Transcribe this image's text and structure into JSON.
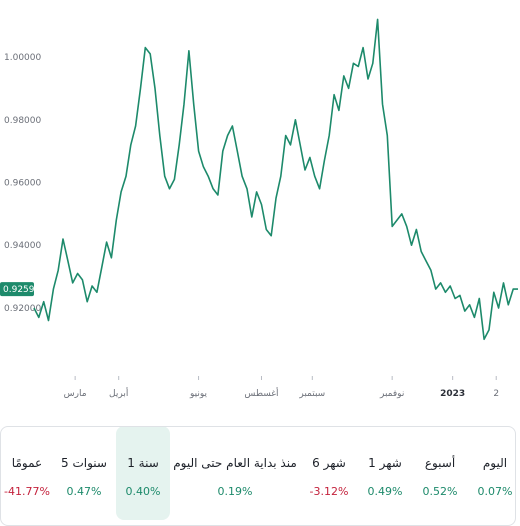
{
  "chart_data": {
    "type": "line",
    "ylim": [
      0.905,
      1.015
    ],
    "yticks": [
      "1.00000",
      "0.98000",
      "0.96000",
      "0.94000",
      "0.92000"
    ],
    "ytick_values": [
      1.0,
      0.98,
      0.96,
      0.94,
      0.92
    ],
    "xticks": [
      "مارس",
      "أبريل",
      "يونيو",
      "أغسطس",
      "سبتمبر",
      "نوفمبر",
      "2023",
      "2"
    ],
    "xtick_positions": [
      0.085,
      0.175,
      0.34,
      0.47,
      0.575,
      0.74,
      0.865,
      0.955
    ],
    "current_value": "0.92594",
    "color": "#1d8a6b",
    "grid": false,
    "series": [
      {
        "x": [
          0,
          0.01,
          0.02,
          0.03,
          0.04,
          0.05,
          0.06,
          0.07,
          0.08,
          0.09,
          0.1,
          0.11,
          0.12,
          0.13,
          0.14,
          0.15,
          0.16,
          0.17,
          0.18,
          0.19,
          0.2,
          0.21,
          0.22,
          0.23,
          0.24,
          0.25,
          0.26,
          0.27,
          0.28,
          0.29,
          0.3,
          0.31,
          0.32,
          0.33,
          0.34,
          0.35,
          0.36,
          0.37,
          0.38,
          0.39,
          0.4,
          0.41,
          0.42,
          0.43,
          0.44,
          0.45,
          0.46,
          0.47,
          0.48,
          0.49,
          0.5,
          0.51,
          0.52,
          0.53,
          0.54,
          0.55,
          0.56,
          0.57,
          0.58,
          0.59,
          0.6,
          0.61,
          0.62,
          0.63,
          0.64,
          0.65,
          0.66,
          0.67,
          0.68,
          0.69,
          0.7,
          0.71,
          0.72,
          0.73,
          0.74,
          0.75,
          0.76,
          0.77,
          0.78,
          0.79,
          0.8,
          0.81,
          0.82,
          0.83,
          0.84,
          0.85,
          0.86,
          0.87,
          0.88,
          0.89,
          0.9,
          0.91,
          0.92,
          0.93,
          0.94,
          0.95,
          0.96,
          0.97,
          0.98,
          0.99,
          1.0
        ],
        "values": [
          0.92,
          0.917,
          0.922,
          0.916,
          0.926,
          0.932,
          0.942,
          0.935,
          0.928,
          0.931,
          0.929,
          0.922,
          0.927,
          0.925,
          0.933,
          0.941,
          0.936,
          0.948,
          0.957,
          0.962,
          0.972,
          0.978,
          0.99,
          1.003,
          1.001,
          0.99,
          0.975,
          0.962,
          0.958,
          0.961,
          0.972,
          0.985,
          1.002,
          0.985,
          0.97,
          0.965,
          0.962,
          0.958,
          0.956,
          0.97,
          0.975,
          0.978,
          0.97,
          0.962,
          0.958,
          0.949,
          0.957,
          0.953,
          0.945,
          0.943,
          0.955,
          0.962,
          0.975,
          0.972,
          0.98,
          0.972,
          0.964,
          0.968,
          0.962,
          0.958,
          0.967,
          0.975,
          0.988,
          0.983,
          0.994,
          0.99,
          0.998,
          0.997,
          1.003,
          0.993,
          0.998,
          1.012,
          0.985,
          0.975,
          0.946,
          0.948,
          0.95,
          0.946,
          0.94,
          0.945,
          0.938,
          0.935,
          0.932,
          0.926,
          0.928,
          0.925,
          0.927,
          0.923,
          0.924,
          0.919,
          0.921,
          0.917,
          0.923,
          0.91,
          0.913,
          0.925,
          0.92,
          0.928,
          0.921,
          0.926,
          0.926
        ]
      }
    ]
  },
  "periods": [
    {
      "label": "عمومًا",
      "value": "-41.77%",
      "sign": "neg"
    },
    {
      "label": "5 سنوات",
      "value": "0.47%",
      "sign": "pos"
    },
    {
      "label": "1 سنة",
      "value": "0.40%",
      "sign": "pos",
      "active": true
    },
    {
      "label": "منذ بداية العام حتى اليوم",
      "value": "0.19%",
      "sign": "pos"
    },
    {
      "label": "6 شهر",
      "value": "-3.12%",
      "sign": "neg"
    },
    {
      "label": "1 شهر",
      "value": "0.49%",
      "sign": "pos"
    },
    {
      "label": "أسبوع",
      "value": "0.52%",
      "sign": "pos"
    },
    {
      "label": "اليوم",
      "value": "0.07%",
      "sign": "pos"
    }
  ]
}
